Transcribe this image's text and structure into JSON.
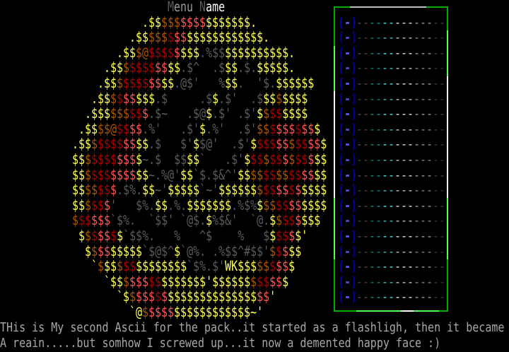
{
  "palette": {
    "Y": "#ffff55",
    "O": "#aa5500",
    "R": "#aa0000",
    "P": "#ff5555",
    "G": "#5a5a5a",
    "L": "#9a9a9a",
    "W": "#ffffff"
  },
  "menu_title": [
    [
      "M",
      "G"
    ],
    [
      "enu",
      "L"
    ],
    [
      " ",
      ""
    ],
    [
      "N",
      "G"
    ],
    [
      "ame",
      "W"
    ]
  ],
  "art_rows": [
    [
      [
        ".$$",
        "Y"
      ],
      [
        "$$$",
        "O"
      ],
      [
        "$$$$",
        "P"
      ],
      [
        "$$$$$$$",
        "Y"
      ],
      [
        ".",
        "Y"
      ]
    ],
    [
      [
        ".$$",
        "Y"
      ],
      [
        "$$$",
        "O"
      ],
      [
        "$",
        "R"
      ],
      [
        "$$",
        "P"
      ],
      [
        "$$$$$$$$$$$$",
        "Y"
      ],
      [
        ".",
        "Y"
      ]
    ],
    [
      [
        ".$$",
        "Y"
      ],
      [
        "$@",
        "O"
      ],
      [
        "$$$$",
        "R"
      ],
      [
        "$",
        "P"
      ],
      [
        "$$$",
        "Y"
      ],
      [
        ".%$$",
        "G"
      ],
      [
        "$$$$$$$$$$",
        "Y"
      ],
      [
        ".",
        "Y"
      ]
    ],
    [
      [
        ".$$",
        "Y"
      ],
      [
        "$",
        "O"
      ],
      [
        "$$$$",
        "R"
      ],
      [
        "$$",
        "P"
      ],
      [
        "$$",
        "Y"
      ],
      [
        ".$^",
        "G"
      ],
      [
        "  ",
        ""
      ],
      [
        ".$",
        "G"
      ],
      [
        "$$",
        "Y"
      ],
      [
        ".$.",
        "G"
      ],
      [
        "$$$$$",
        "Y"
      ],
      [
        ".",
        "Y"
      ]
    ],
    [
      [
        ".$$",
        "Y"
      ],
      [
        "$",
        "O"
      ],
      [
        "$$$$",
        "R"
      ],
      [
        "$$",
        "P"
      ],
      [
        "$$",
        "Y"
      ],
      [
        ".@$'",
        "G"
      ],
      [
        "   ",
        ""
      ],
      [
        "%",
        "G"
      ],
      [
        "$$",
        "Y"
      ],
      [
        ".",
        "G"
      ],
      [
        "  ",
        ""
      ],
      [
        "'$.",
        "G"
      ],
      [
        "$$$$$$",
        "Y"
      ]
    ],
    [
      [
        ".$$",
        "Y"
      ],
      [
        "$",
        "O"
      ],
      [
        "$",
        "R"
      ],
      [
        "$$",
        "P"
      ],
      [
        "$$$",
        "Y"
      ],
      [
        ".$",
        "G"
      ],
      [
        "     ",
        ""
      ],
      [
        ".$",
        "G"
      ],
      [
        "$",
        "Y"
      ],
      [
        ".$'",
        "G"
      ],
      [
        "  ",
        ""
      ],
      [
        ".$",
        "G"
      ],
      [
        "$$",
        "Y"
      ],
      [
        "$",
        "O"
      ],
      [
        "$$$$",
        "Y"
      ]
    ],
    [
      [
        ".$$$",
        "Y"
      ],
      [
        "$$$",
        "O"
      ],
      [
        "$$",
        "R"
      ],
      [
        "$",
        "P"
      ],
      [
        ".$~",
        "G"
      ],
      [
        "   ",
        ""
      ],
      [
        ".$@",
        "G"
      ],
      [
        "$",
        "Y"
      ],
      [
        ".$'",
        "G"
      ],
      [
        " ",
        ""
      ],
      [
        ".$'",
        "G"
      ],
      [
        "$",
        "Y"
      ],
      [
        "$",
        "O"
      ],
      [
        "$$",
        "R"
      ],
      [
        "$$$$",
        "Y"
      ]
    ],
    [
      [
        ".$$",
        "Y"
      ],
      [
        "$$@",
        "O"
      ],
      [
        "$$",
        "R"
      ],
      [
        "$$",
        "P"
      ],
      [
        ".%'",
        "G"
      ],
      [
        "   ",
        ""
      ],
      [
        ".$'",
        "G"
      ],
      [
        "$",
        "Y"
      ],
      [
        ".%'",
        "G"
      ],
      [
        "  ",
        ""
      ],
      [
        ".$'",
        "G"
      ],
      [
        "$$",
        "O"
      ],
      [
        "$",
        "R"
      ],
      [
        "$$$",
        "P"
      ],
      [
        "$",
        "R"
      ],
      [
        "$$",
        "P"
      ],
      [
        "$",
        "Y"
      ]
    ],
    [
      [
        ".$$",
        "Y"
      ],
      [
        "$",
        "O"
      ],
      [
        "$$$$",
        "R"
      ],
      [
        "$$",
        "P"
      ],
      [
        "$$",
        "Y"
      ],
      [
        ".$",
        "G"
      ],
      [
        "   ",
        ""
      ],
      [
        "$'",
        "G"
      ],
      [
        "$",
        "Y"
      ],
      [
        "$@'",
        "G"
      ],
      [
        "  ",
        ""
      ],
      [
        ".$'",
        "G"
      ],
      [
        "$",
        "Y"
      ],
      [
        "$$$",
        "R"
      ],
      [
        "$$",
        "P"
      ],
      [
        "$",
        "O"
      ],
      [
        "$$",
        "R"
      ],
      [
        "$$",
        "P"
      ],
      [
        "$",
        "Y"
      ]
    ],
    [
      [
        "$$",
        "Y"
      ],
      [
        "$",
        "O"
      ],
      [
        "$$$$",
        "R"
      ],
      [
        "$$$",
        "P"
      ],
      [
        "$",
        "Y"
      ],
      [
        "~.$",
        "G"
      ],
      [
        "  ",
        ""
      ],
      [
        "$$",
        "G"
      ],
      [
        "$$",
        "Y"
      ],
      [
        "`",
        "G"
      ],
      [
        "   ",
        ""
      ],
      [
        ".$'",
        "G"
      ],
      [
        "$",
        "Y"
      ],
      [
        "$$",
        "R"
      ],
      [
        "$",
        "O"
      ],
      [
        "$$",
        "R"
      ],
      [
        "$",
        "P"
      ],
      [
        "$",
        "O"
      ],
      [
        "$$",
        "R"
      ],
      [
        "$",
        "P"
      ],
      [
        "$$",
        "Y"
      ]
    ],
    [
      [
        "$$",
        "Y"
      ],
      [
        "$",
        "O"
      ],
      [
        "$$$",
        "R"
      ],
      [
        "$$$$",
        "P"
      ],
      [
        "$$",
        "Y"
      ],
      [
        "~.%@'",
        "G"
      ],
      [
        "$$",
        "Y"
      ],
      [
        "`$.$&^'",
        "G"
      ],
      [
        "$$",
        "Y"
      ],
      [
        "$$",
        "O"
      ],
      [
        "$$",
        "R"
      ],
      [
        "$$",
        "O"
      ],
      [
        "$$",
        "R"
      ],
      [
        "$$",
        "P"
      ],
      [
        "$$",
        "Y"
      ]
    ],
    [
      [
        "$$",
        "Y"
      ],
      [
        "$$",
        "O"
      ],
      [
        "$$",
        "R"
      ],
      [
        "$",
        "P"
      ],
      [
        ".$%.",
        "G"
      ],
      [
        "$$",
        "Y"
      ],
      [
        "~'",
        "G"
      ],
      [
        "$$$$$",
        "Y"
      ],
      [
        "`~'",
        "G"
      ],
      [
        "$$$$$$",
        "Y"
      ],
      [
        "$",
        "O"
      ],
      [
        "$$",
        "R"
      ],
      [
        "$$",
        "P"
      ],
      [
        "$",
        "R"
      ],
      [
        "$",
        "P"
      ],
      [
        "$$$$",
        "Y"
      ]
    ],
    [
      [
        "$$",
        "Y"
      ],
      [
        "$",
        "O"
      ],
      [
        "$$",
        "R"
      ],
      [
        "$",
        "P"
      ],
      [
        "'",
        "G"
      ],
      [
        "   ",
        ""
      ],
      [
        "$%.",
        "G"
      ],
      [
        "$$",
        "Y"
      ],
      [
        ".%.",
        "G"
      ],
      [
        "$$$$$$$",
        "Y"
      ],
      [
        ".%$%",
        "G"
      ],
      [
        "$",
        "Y"
      ],
      [
        "$$",
        "O"
      ],
      [
        "$$",
        "R"
      ],
      [
        "$$",
        "P"
      ],
      [
        "$$$$",
        "Y"
      ]
    ],
    [
      [
        "$",
        "O"
      ],
      [
        "$$",
        "R"
      ],
      [
        "$$$",
        "P"
      ],
      [
        "`$%.",
        "G"
      ],
      [
        "  ",
        ""
      ],
      [
        "`$$'",
        "G"
      ],
      [
        " ",
        ""
      ],
      [
        "`@$.",
        "G"
      ],
      [
        "$",
        "Y"
      ],
      [
        "%$&'",
        "G"
      ],
      [
        "  ",
        ""
      ],
      [
        "`@.",
        "G"
      ],
      [
        "$",
        "Y"
      ],
      [
        "$",
        "O"
      ],
      [
        "$$",
        "R"
      ],
      [
        "$",
        "P"
      ],
      [
        "$$$",
        "Y"
      ]
    ],
    [
      [
        "$",
        "Y"
      ],
      [
        "$",
        "O"
      ],
      [
        "$",
        "R"
      ],
      [
        "$$",
        "P"
      ],
      [
        "$",
        "R"
      ],
      [
        "$",
        "Y"
      ],
      [
        "`$$%.",
        "G"
      ],
      [
        "   ",
        ""
      ],
      [
        "%",
        "G"
      ],
      [
        "   ",
        ""
      ],
      [
        "^$",
        "G"
      ],
      [
        "    ",
        ""
      ],
      [
        "%",
        "G"
      ],
      [
        "   ",
        ""
      ],
      [
        "$",
        "G"
      ],
      [
        "$",
        "Y"
      ],
      [
        "$$",
        "R"
      ],
      [
        "$",
        "P"
      ],
      [
        "$'",
        "Y"
      ]
    ],
    [
      [
        "$",
        "Y"
      ],
      [
        "$",
        "O"
      ],
      [
        "$$",
        "P"
      ],
      [
        "$$$$$",
        "Y"
      ],
      [
        "`$@$^",
        "G"
      ],
      [
        "$",
        "Y"
      ],
      [
        "`@%.",
        "G"
      ],
      [
        " ",
        ""
      ],
      [
        ".%$$^#$$'",
        "G"
      ],
      [
        "$",
        "O"
      ],
      [
        "$",
        "R"
      ],
      [
        "$",
        "P"
      ],
      [
        "$$",
        "Y"
      ]
    ],
    [
      [
        "`",
        "Y"
      ],
      [
        "$",
        "O"
      ],
      [
        "$$",
        "Y"
      ],
      [
        "$",
        "O"
      ],
      [
        "$$",
        "R"
      ],
      [
        "$$$$$$$$",
        "Y"
      ],
      [
        "`$%.$'",
        "G"
      ],
      [
        "WK$$$",
        "Y"
      ],
      [
        "$$",
        "O"
      ],
      [
        "$",
        "R"
      ],
      [
        "$$",
        "P"
      ],
      [
        "$",
        "Y"
      ]
    ],
    [
      [
        "`$$",
        "Y"
      ],
      [
        "$",
        "O"
      ],
      [
        "$$$",
        "P"
      ],
      [
        "$$",
        "R"
      ],
      [
        "$$$$$$$",
        "Y"
      ],
      [
        "'",
        "Y"
      ],
      [
        "$$$$$$",
        "Y"
      ],
      [
        "$",
        "O"
      ],
      [
        "$$",
        "R"
      ],
      [
        "$$",
        "P"
      ],
      [
        "$",
        "Y"
      ]
    ],
    [
      [
        "`$",
        "Y"
      ],
      [
        "$",
        "O"
      ],
      [
        "$$$",
        "P"
      ],
      [
        "$",
        "R"
      ],
      [
        "$",
        "P"
      ],
      [
        "$$$$$$$$$$$$$$",
        "Y"
      ],
      [
        "$$",
        "P"
      ],
      [
        "'",
        "Y"
      ]
    ],
    [
      [
        "`@",
        "Y"
      ],
      [
        "$",
        "O"
      ],
      [
        "$$$$",
        "P"
      ],
      [
        "$$$$$$$$$$$$",
        "Y"
      ],
      [
        "~'",
        "Y"
      ]
    ]
  ],
  "panel": {
    "item_open": "(",
    "item_dash": "-",
    "item_close": ")",
    "bar": "--------------",
    "bar_colors": [
      "#555555",
      "#555555",
      "#00aaaa",
      "#00aaaa",
      "#55ffff",
      "#55ffff",
      "#ffffff",
      "#ffffff",
      "#ffffff",
      "#aaaaaa",
      "#aaaaaa",
      "#aaaaaa",
      "#444444",
      "#444444"
    ],
    "item_count": 19,
    "border_colors": {
      "dark": "#00aa00",
      "bright": "#55ff55",
      "white": "#ffffff",
      "gray": "#c0c0c0"
    }
  },
  "footer": {
    "line1": "THis is My second Ascii for the pack..it started as a flashligh, then it became",
    "line2": "A reain.....but somhow I screwed up...it now a demented happy face :)"
  }
}
